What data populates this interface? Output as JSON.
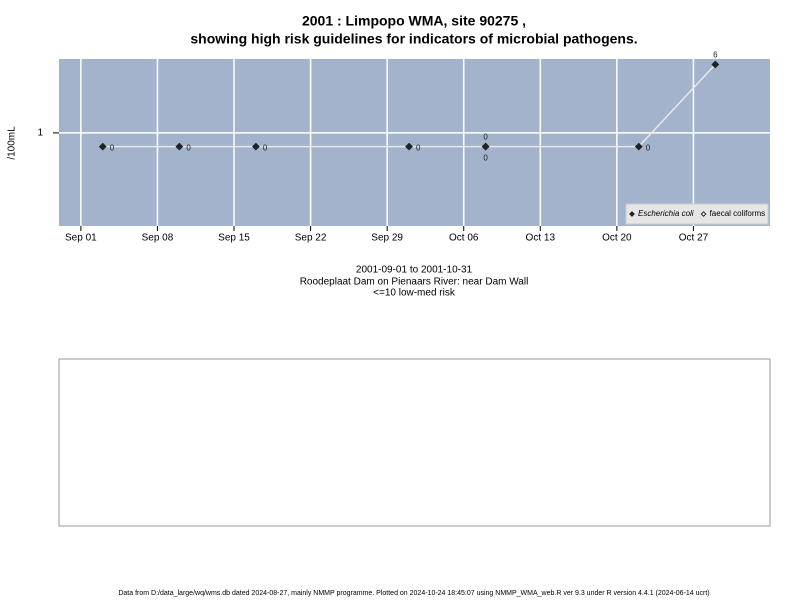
{
  "chart_data": {
    "type": "line",
    "title": "2001 : Limpopo WMA, site 90275 ,",
    "title2": "showing high risk guidelines for indicators of microbial pathogens.",
    "y_label": "/100mL",
    "subtitle": [
      "2001-09-01 to 2001-10-31",
      "Roodeplaat Dam on Pienaars River: near Dam Wall",
      "<=10 low-med risk"
    ],
    "footer": "Data from D:/data_large/wq/wms.db dated 2024-08-27, mainly NMMP programme. Plotted on 2024-10-24 18:45:07 using NMMP_WMA_web.R ver 9.3 under R version 4.4.1 (2024-06-14 ucrt)",
    "series": [
      {
        "name": "Escherichia coli",
        "color": "#222222",
        "x": [
          "09-03",
          "09-10",
          "09-17",
          "10-01",
          "10-08",
          "10-22",
          "10-29"
        ],
        "values": [
          0,
          0,
          0,
          0,
          0,
          0,
          6
        ]
      },
      {
        "name": "faecal coliforms",
        "color": "#222222",
        "x": [
          "10-08"
        ],
        "values": [
          0
        ]
      }
    ],
    "xlim": [
      "08-30",
      "11-03"
    ],
    "xticks": [
      {
        "value": "09-01",
        "label": "Sep 01"
      },
      {
        "value": "09-08",
        "label": "Sep 08"
      },
      {
        "value": "09-15",
        "label": "Sep 15"
      },
      {
        "value": "09-22",
        "label": "Sep 22"
      },
      {
        "value": "09-29",
        "label": "Sep 29"
      },
      {
        "value": "10-06",
        "label": "Oct 06"
      },
      {
        "value": "10-13",
        "label": "Oct 13"
      },
      {
        "value": "10-20",
        "label": "Oct 20"
      },
      {
        "value": "10-27",
        "label": "Oct 27"
      }
    ],
    "ylim": [
      -5.8,
      6.4
    ],
    "yticks": [
      1
    ],
    "grid": true,
    "legend": "bottom-right"
  }
}
